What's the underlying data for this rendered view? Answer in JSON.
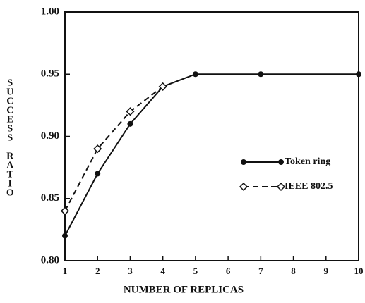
{
  "chart_data": {
    "type": "line",
    "x_label": "NUMBER OF REPLICAS",
    "y_label": "SUCCESS RATIO",
    "xlim": [
      1,
      10
    ],
    "xticks": [
      1,
      2,
      3,
      4,
      5,
      6,
      7,
      8,
      9,
      10
    ],
    "ylim": [
      0.8,
      1.0
    ],
    "yticks": [
      {
        "value": 0.8,
        "label": "0.80"
      },
      0.85,
      {
        "value": 0.9,
        "label": "0.90"
      },
      0.95,
      {
        "value": 1.0,
        "label": "1.00"
      }
    ],
    "grid": false,
    "legend": "right",
    "series": [
      {
        "name": "Token ring",
        "color": "#111111",
        "marker": "circle",
        "dash": false,
        "x": [
          1,
          2,
          3,
          4,
          5,
          7,
          10
        ],
        "values": [
          0.82,
          0.87,
          0.91,
          0.94,
          0.95,
          0.95,
          0.95
        ]
      },
      {
        "name": "IEEE 802.5",
        "color": "#111111",
        "marker": "diamond",
        "dash": true,
        "x": [
          1,
          2,
          3,
          4
        ],
        "values": [
          0.84,
          0.89,
          0.92,
          0.94
        ]
      }
    ]
  }
}
